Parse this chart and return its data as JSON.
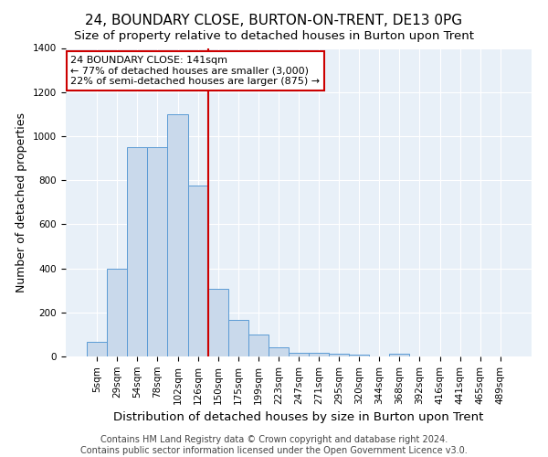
{
  "title": "24, BOUNDARY CLOSE, BURTON-ON-TRENT, DE13 0PG",
  "subtitle": "Size of property relative to detached houses in Burton upon Trent",
  "xlabel": "Distribution of detached houses by size in Burton upon Trent",
  "ylabel": "Number of detached properties",
  "categories": [
    "5sqm",
    "29sqm",
    "54sqm",
    "78sqm",
    "102sqm",
    "126sqm",
    "150sqm",
    "175sqm",
    "199sqm",
    "223sqm",
    "247sqm",
    "271sqm",
    "295sqm",
    "320sqm",
    "344sqm",
    "368sqm",
    "392sqm",
    "416sqm",
    "441sqm",
    "465sqm",
    "489sqm"
  ],
  "values": [
    65,
    400,
    950,
    950,
    1100,
    775,
    305,
    165,
    100,
    40,
    18,
    18,
    12,
    8,
    0,
    12,
    0,
    0,
    0,
    0,
    0
  ],
  "bar_color": "#c9d9eb",
  "bar_edge_color": "#5b9bd5",
  "vline_color": "#cc0000",
  "vline_pos": 6,
  "annotation_text": "24 BOUNDARY CLOSE: 141sqm\n← 77% of detached houses are smaller (3,000)\n22% of semi-detached houses are larger (875) →",
  "annotation_box_facecolor": "white",
  "annotation_box_edgecolor": "#cc0000",
  "ylim": [
    0,
    1400
  ],
  "yticks": [
    0,
    200,
    400,
    600,
    800,
    1000,
    1200,
    1400
  ],
  "figure_bg": "#ffffff",
  "plot_bg": "#e8f0f8",
  "grid_color": "#ffffff",
  "title_fontsize": 11,
  "subtitle_fontsize": 9.5,
  "ylabel_fontsize": 9,
  "xlabel_fontsize": 9.5,
  "tick_fontsize": 7.5,
  "annot_fontsize": 8,
  "footer_fontsize": 7,
  "footer_line1": "Contains HM Land Registry data © Crown copyright and database right 2024.",
  "footer_line2": "Contains public sector information licensed under the Open Government Licence v3.0."
}
